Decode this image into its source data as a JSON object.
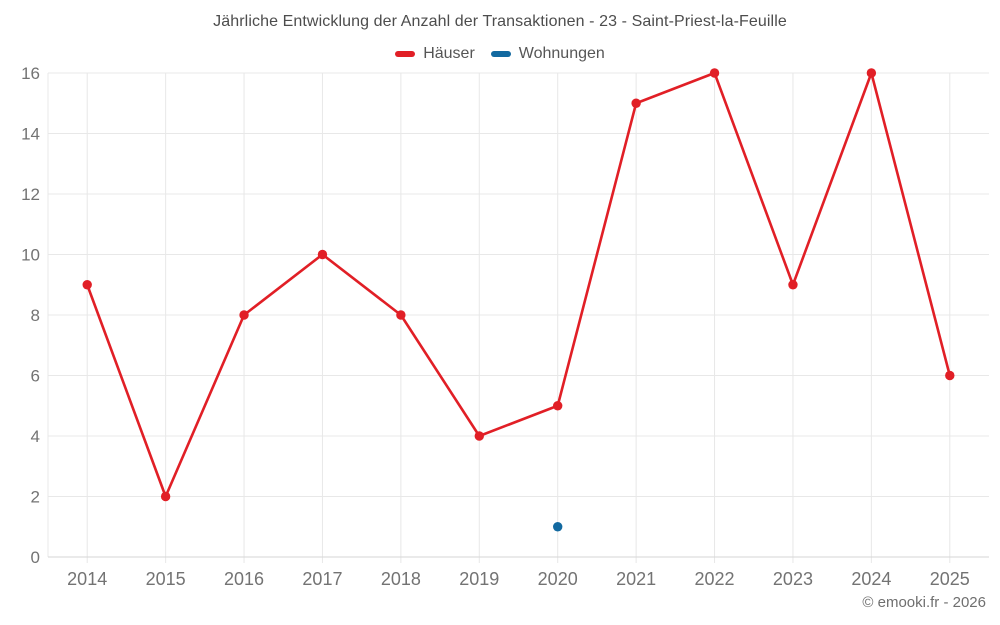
{
  "page": {
    "footer": "© emooki.fr - 2026"
  },
  "chart_data": {
    "type": "line",
    "title": "Jährliche Entwicklung der Anzahl der Transaktionen - 23 - Saint-Priest-la-Feuille",
    "xlabel": "",
    "ylabel": "",
    "categories": [
      "2014",
      "2015",
      "2016",
      "2017",
      "2018",
      "2019",
      "2020",
      "2021",
      "2022",
      "2023",
      "2024",
      "2025"
    ],
    "series": [
      {
        "name": "Häuser",
        "color": "#e11f26",
        "values": [
          9,
          2,
          8,
          10,
          8,
          4,
          5,
          15,
          16,
          9,
          16,
          6
        ]
      },
      {
        "name": "Wohnungen",
        "color": "#1269a0",
        "values": [
          null,
          null,
          null,
          null,
          null,
          null,
          1,
          null,
          null,
          null,
          null,
          null
        ]
      }
    ],
    "ylim": [
      0,
      16
    ],
    "ytick_step": 2,
    "grid": true,
    "legend_position": "top",
    "colors": {
      "grid_line": "#e8e8e8",
      "axis_line": "#d6d6d6",
      "tick_label": "#737373",
      "title_text": "#4d4d4d",
      "legend_text": "#565656",
      "background": "#ffffff"
    }
  }
}
